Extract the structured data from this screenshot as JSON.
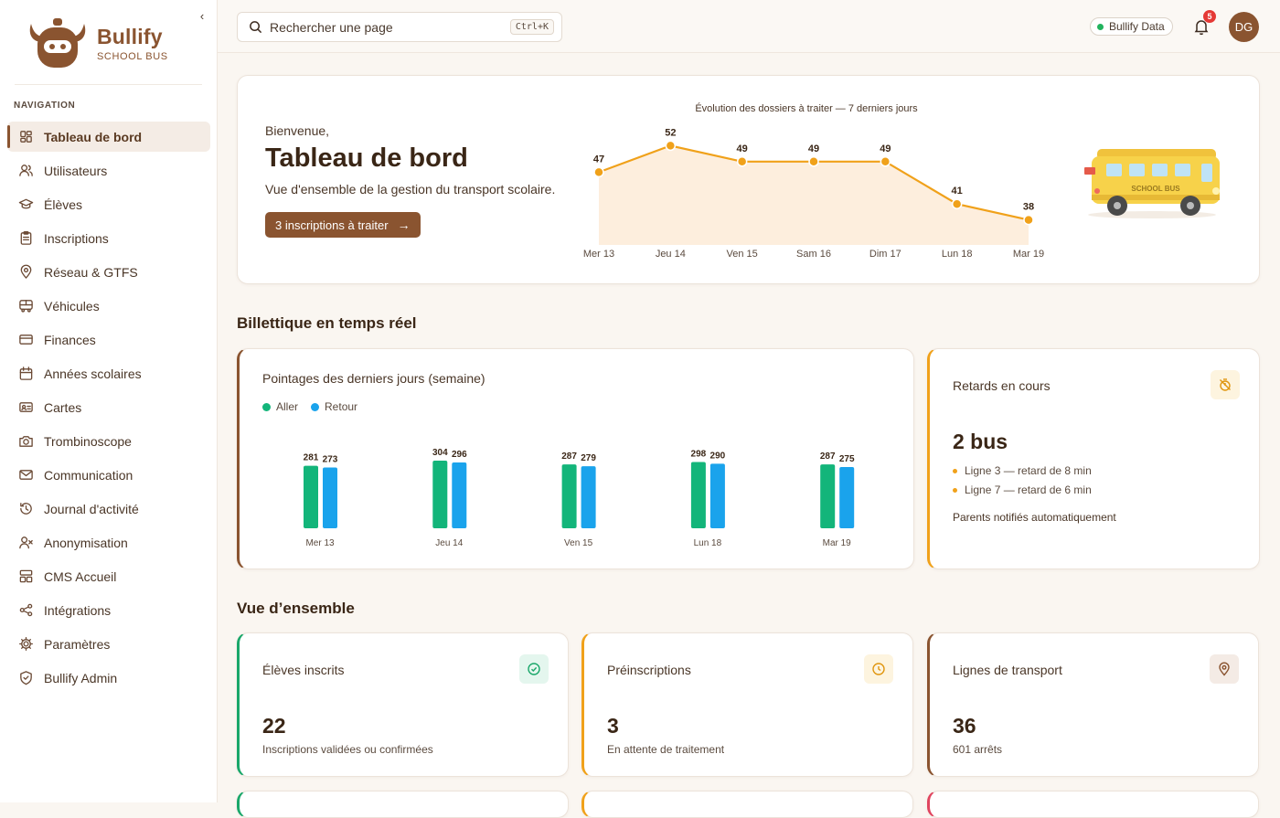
{
  "brand": {
    "name": "Bullify",
    "tagline": "SCHOOL BUS"
  },
  "sidebar": {
    "collapse_glyph": "‹",
    "heading": "NAVIGATION",
    "items": [
      {
        "label": "Tableau de bord",
        "icon": "dashboard-icon",
        "active": true
      },
      {
        "label": "Utilisateurs",
        "icon": "users-icon"
      },
      {
        "label": "Élèves",
        "icon": "graduation-cap-icon"
      },
      {
        "label": "Inscriptions",
        "icon": "clipboard-icon"
      },
      {
        "label": "Réseau & GTFS",
        "icon": "map-pin-icon"
      },
      {
        "label": "Véhicules",
        "icon": "bus-icon"
      },
      {
        "label": "Finances",
        "icon": "credit-card-icon"
      },
      {
        "label": "Années scolaires",
        "icon": "calendar-icon"
      },
      {
        "label": "Cartes",
        "icon": "id-card-icon"
      },
      {
        "label": "Trombinoscope",
        "icon": "camera-icon"
      },
      {
        "label": "Communication",
        "icon": "mail-icon"
      },
      {
        "label": "Journal d'activité",
        "icon": "history-icon"
      },
      {
        "label": "Anonymisation",
        "icon": "user-x-icon"
      },
      {
        "label": "CMS Accueil",
        "icon": "layout-icon"
      },
      {
        "label": "Intégrations",
        "icon": "share-icon"
      },
      {
        "label": "Paramètres",
        "icon": "gear-icon"
      },
      {
        "label": "Bullify Admin",
        "icon": "shield-icon"
      }
    ]
  },
  "topbar": {
    "search_placeholder": "Rechercher une page",
    "search_shortcut": "Ctrl+K",
    "status_label": "Bullify Data",
    "notification_count": "5",
    "avatar_initials": "DG"
  },
  "hero": {
    "greeting": "Bienvenue,",
    "title": "Tableau de bord",
    "description": "Vue d'ensemble de la gestion du transport scolaire.",
    "cta_label": "3 inscriptions à traiter",
    "bus_sign": "SCHOOL BUS"
  },
  "sections": {
    "ticketing": "Billettique en temps réel",
    "overview": "Vue d’ensemble"
  },
  "ticketing": {
    "chart_title": "Pointages des derniers jours (semaine)",
    "legend": [
      {
        "label": "Aller",
        "color": "#13b57a"
      },
      {
        "label": "Retour",
        "color": "#1aa3ec"
      }
    ]
  },
  "delays": {
    "title": "Retards en cours",
    "value": "2 bus",
    "items": [
      "Ligne 3 — retard de 8 min",
      "Ligne 7 — retard de 6 min"
    ],
    "note": "Parents notifiés automatiquement"
  },
  "stats": [
    {
      "title": "Élèves inscrits",
      "value": "22",
      "sub": "Inscriptions validées ou confirmées",
      "icon": "check-circle-icon",
      "accent": "#1aa76a"
    },
    {
      "title": "Préinscriptions",
      "value": "3",
      "sub": "En attente de traitement",
      "icon": "clock-icon",
      "accent": "#f0a11a"
    },
    {
      "title": "Lignes de transport",
      "value": "36",
      "sub": "601 arrêts",
      "icon": "map-pin-icon",
      "accent": "#8a5430"
    }
  ],
  "chart_data": [
    {
      "type": "area",
      "title": "Évolution des dossiers à traiter — 7 derniers jours",
      "categories": [
        "Mer 13",
        "Jeu 14",
        "Ven 15",
        "Sam 16",
        "Dim 17",
        "Lun 18",
        "Mar 19"
      ],
      "values": [
        47,
        52,
        49,
        49,
        49,
        41,
        38
      ],
      "color": "#f0a11a"
    },
    {
      "type": "bar",
      "title": "Pointages des derniers jours (semaine)",
      "categories": [
        "Mer 13",
        "Jeu 14",
        "Ven 15",
        "Lun 18",
        "Mar 19"
      ],
      "series": [
        {
          "name": "Aller",
          "values": [
            281,
            304,
            287,
            298,
            287
          ],
          "color": "#13b57a"
        },
        {
          "name": "Retour",
          "values": [
            273,
            296,
            279,
            290,
            275
          ],
          "color": "#1aa3ec"
        }
      ],
      "legend": "top-left"
    }
  ]
}
